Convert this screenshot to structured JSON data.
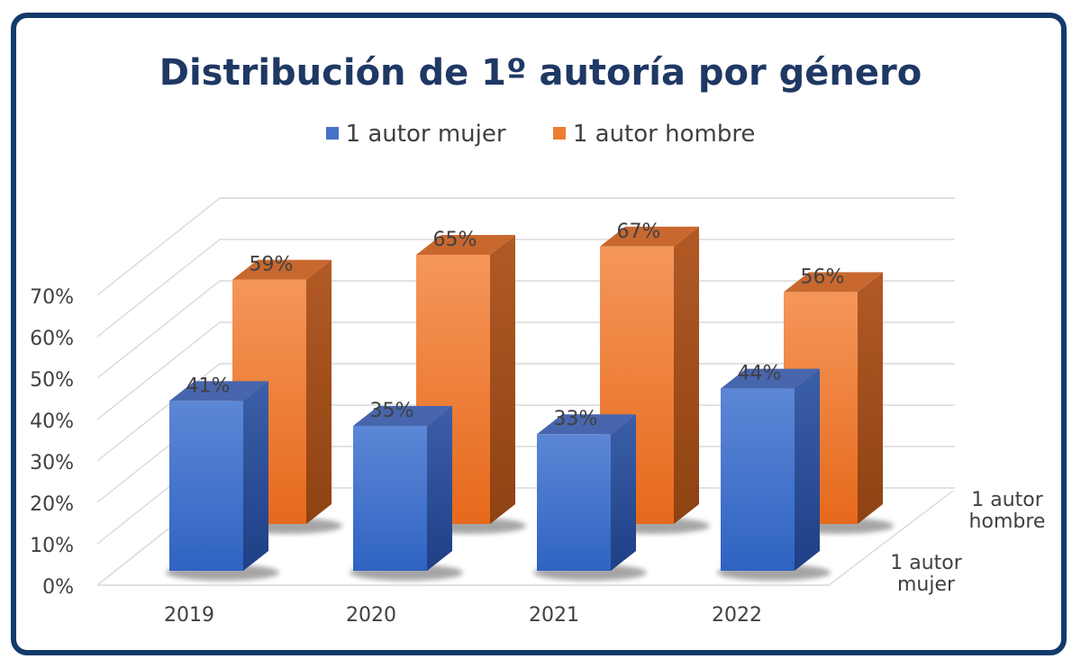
{
  "chart_data": {
    "type": "bar",
    "title": "Distribución de 1º autoría por género",
    "categories": [
      "2019",
      "2020",
      "2021",
      "2022"
    ],
    "series": [
      {
        "name": "1 autor mujer",
        "values": [
          41,
          35,
          33,
          44
        ],
        "labels": [
          "41%",
          "35%",
          "33%",
          "44%"
        ],
        "color": "#4472c4"
      },
      {
        "name": "1 autor hombre",
        "values": [
          59,
          65,
          67,
          56
        ],
        "labels": [
          "59%",
          "65%",
          "67%",
          "56%"
        ],
        "color": "#ed7d31"
      }
    ],
    "series_axis_labels": [
      {
        "line1": "1 autor",
        "line2": "mujer"
      },
      {
        "line1": "1 autor",
        "line2": "hombre"
      }
    ],
    "y_ticks": [
      "0%",
      "10%",
      "20%",
      "30%",
      "40%",
      "50%",
      "60%",
      "70%"
    ],
    "ylim": [
      0,
      70
    ],
    "grid": true,
    "legend": "top",
    "style": "3d-column"
  },
  "colors": {
    "frame": "#123a6b",
    "title": "#1f3864",
    "female": "#4472c4",
    "male": "#ed7d31"
  }
}
